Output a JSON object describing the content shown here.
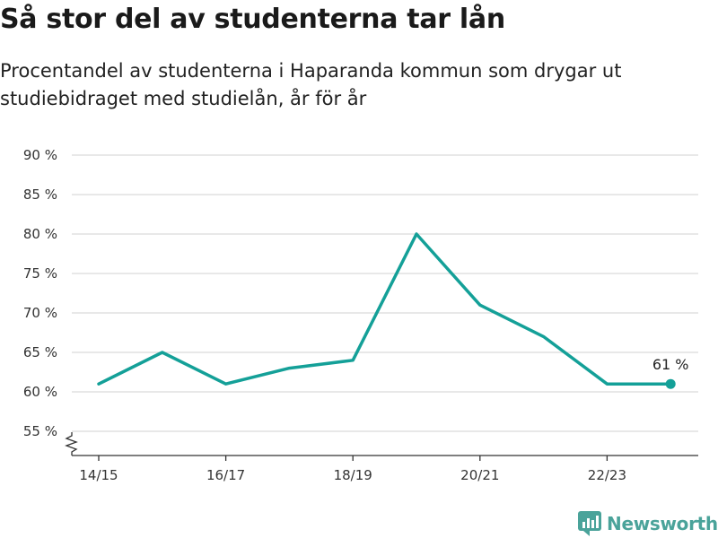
{
  "title": "Så stor del av studenterna tar lån",
  "subtitle": "Procentandel av studenterna i Haparanda kommun som drygar ut studiebidraget med studielån, år för år",
  "brand": {
    "name": "Newsworthy",
    "logo_icon": "newsworthy-logo-icon"
  },
  "colors": {
    "line": "#14a098",
    "grid": "#d9d9d9",
    "axis": "#333333",
    "brand": "#4aa39a"
  },
  "chart_data": {
    "type": "line",
    "x": [
      "14/15",
      "15/16",
      "16/17",
      "17/18",
      "18/19",
      "19/20",
      "20/21",
      "21/22",
      "22/23",
      "23/24"
    ],
    "xticks": [
      "14/15",
      "16/17",
      "18/19",
      "20/21",
      "22/23"
    ],
    "values": [
      61,
      65,
      61,
      63,
      64,
      80,
      71,
      67,
      61,
      61
    ],
    "ylim": [
      55,
      90
    ],
    "yticks": [
      55,
      60,
      65,
      70,
      75,
      80,
      85,
      90
    ],
    "y_unit": " %",
    "y_axis_break": true,
    "grid": true,
    "last_point_label": "61 %"
  }
}
